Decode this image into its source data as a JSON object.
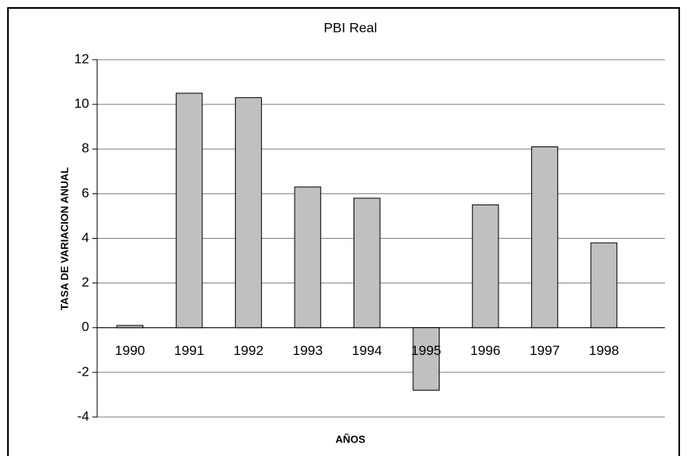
{
  "chart_data": {
    "type": "bar",
    "title": "PBI Real",
    "x_label": "AÑOS",
    "y_label": "TASA DE VARIACION ANUAL",
    "categories": [
      "1990",
      "1991",
      "1992",
      "1993",
      "1994",
      "1995",
      "1996",
      "1997",
      "1998"
    ],
    "values": [
      0.1,
      10.5,
      10.3,
      6.3,
      5.8,
      -2.8,
      5.5,
      8.1,
      3.8
    ],
    "color": "#c0c0c0",
    "ylim": [
      -4,
      12
    ],
    "yticks": [
      -4,
      -2,
      0,
      2,
      4,
      6,
      8,
      10,
      12
    ],
    "grid": true
  }
}
